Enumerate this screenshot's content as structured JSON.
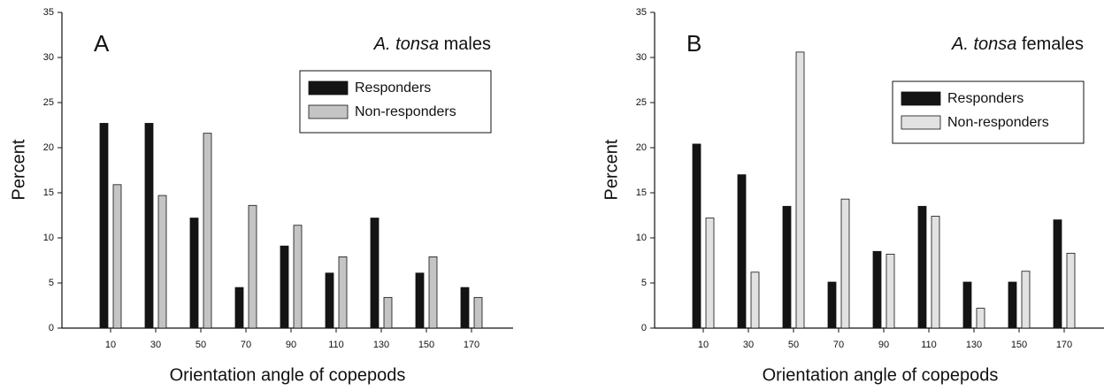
{
  "chart_data": [
    {
      "type": "bar",
      "panel_label": "A",
      "title_parts": [
        {
          "text": "A. tonsa",
          "italic": true
        },
        {
          "text": "males"
        }
      ],
      "x_label": "Orientation angle of copepods",
      "y_label": "Percent",
      "categories": [
        "10",
        "30",
        "50",
        "70",
        "90",
        "110",
        "130",
        "150",
        "170"
      ],
      "series": [
        {
          "name": "Responders",
          "color": "#141414",
          "values": [
            22.7,
            22.7,
            12.2,
            4.5,
            9.1,
            6.1,
            12.2,
            6.1,
            4.5
          ]
        },
        {
          "name": "Non-responders",
          "color": "#c4c4c4",
          "values": [
            15.9,
            14.7,
            21.6,
            13.6,
            11.4,
            7.9,
            3.4,
            7.9,
            3.4
          ]
        }
      ],
      "ylim": [
        0,
        35
      ],
      "yticks": [
        0,
        5,
        10,
        15,
        20,
        25,
        30,
        35
      ],
      "legend": "upper right"
    },
    {
      "type": "bar",
      "panel_label": "B",
      "title_parts": [
        {
          "text": "A. tonsa",
          "italic": true
        },
        {
          "text": "females"
        }
      ],
      "x_label": "Orientation angle of copepods",
      "y_label": "Percent",
      "categories": [
        "10",
        "30",
        "50",
        "70",
        "90",
        "110",
        "130",
        "150",
        "170"
      ],
      "series": [
        {
          "name": "Responders",
          "color": "#141414",
          "values": [
            20.4,
            17,
            13.5,
            5.1,
            8.5,
            13.5,
            5.1,
            5.1,
            12
          ]
        },
        {
          "name": "Non-responders",
          "color": "#e2e2e2",
          "values": [
            12.2,
            6.2,
            30.6,
            14.3,
            8.2,
            12.4,
            2.2,
            6.3,
            8.3
          ]
        }
      ],
      "ylim": [
        0,
        35
      ],
      "yticks": [
        0,
        5,
        10,
        15,
        20,
        25,
        30,
        35
      ],
      "legend": "upper right"
    }
  ]
}
